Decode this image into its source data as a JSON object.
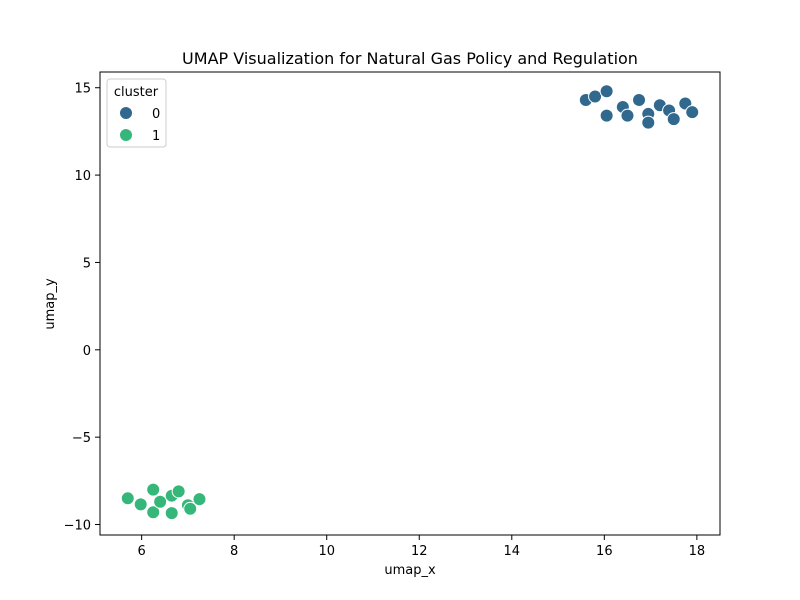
{
  "chart_data": {
    "type": "scatter",
    "title": "UMAP Visualization for Natural Gas Policy and Regulation",
    "xlabel": "umap_x",
    "ylabel": "umap_y",
    "xlim": [
      5.1,
      18.5
    ],
    "ylim": [
      -10.6,
      15.9
    ],
    "xticks": [
      6,
      8,
      10,
      12,
      14,
      16,
      18
    ],
    "yticks": [
      -10,
      -5,
      0,
      5,
      10,
      15
    ],
    "grid": false,
    "legend": {
      "title": "cluster",
      "placement": "upper-left"
    },
    "series": [
      {
        "name": "0",
        "color": "#31688e",
        "points": [
          [
            15.6,
            14.3
          ],
          [
            15.8,
            14.5
          ],
          [
            16.05,
            14.8
          ],
          [
            16.05,
            13.4
          ],
          [
            16.4,
            13.9
          ],
          [
            16.5,
            13.4
          ],
          [
            16.75,
            14.3
          ],
          [
            16.95,
            13.5
          ],
          [
            16.95,
            13.0
          ],
          [
            17.2,
            14.0
          ],
          [
            17.4,
            13.7
          ],
          [
            17.5,
            13.2
          ],
          [
            17.75,
            14.1
          ],
          [
            17.9,
            13.6
          ]
        ]
      },
      {
        "name": "1",
        "color": "#35b779",
        "points": [
          [
            5.7,
            -8.5
          ],
          [
            5.98,
            -8.85
          ],
          [
            6.25,
            -9.3
          ],
          [
            6.25,
            -8.0
          ],
          [
            6.4,
            -8.7
          ],
          [
            6.65,
            -8.35
          ],
          [
            6.65,
            -9.35
          ],
          [
            6.8,
            -8.1
          ],
          [
            7.0,
            -8.9
          ],
          [
            7.05,
            -9.1
          ],
          [
            7.25,
            -8.55
          ]
        ]
      }
    ]
  }
}
